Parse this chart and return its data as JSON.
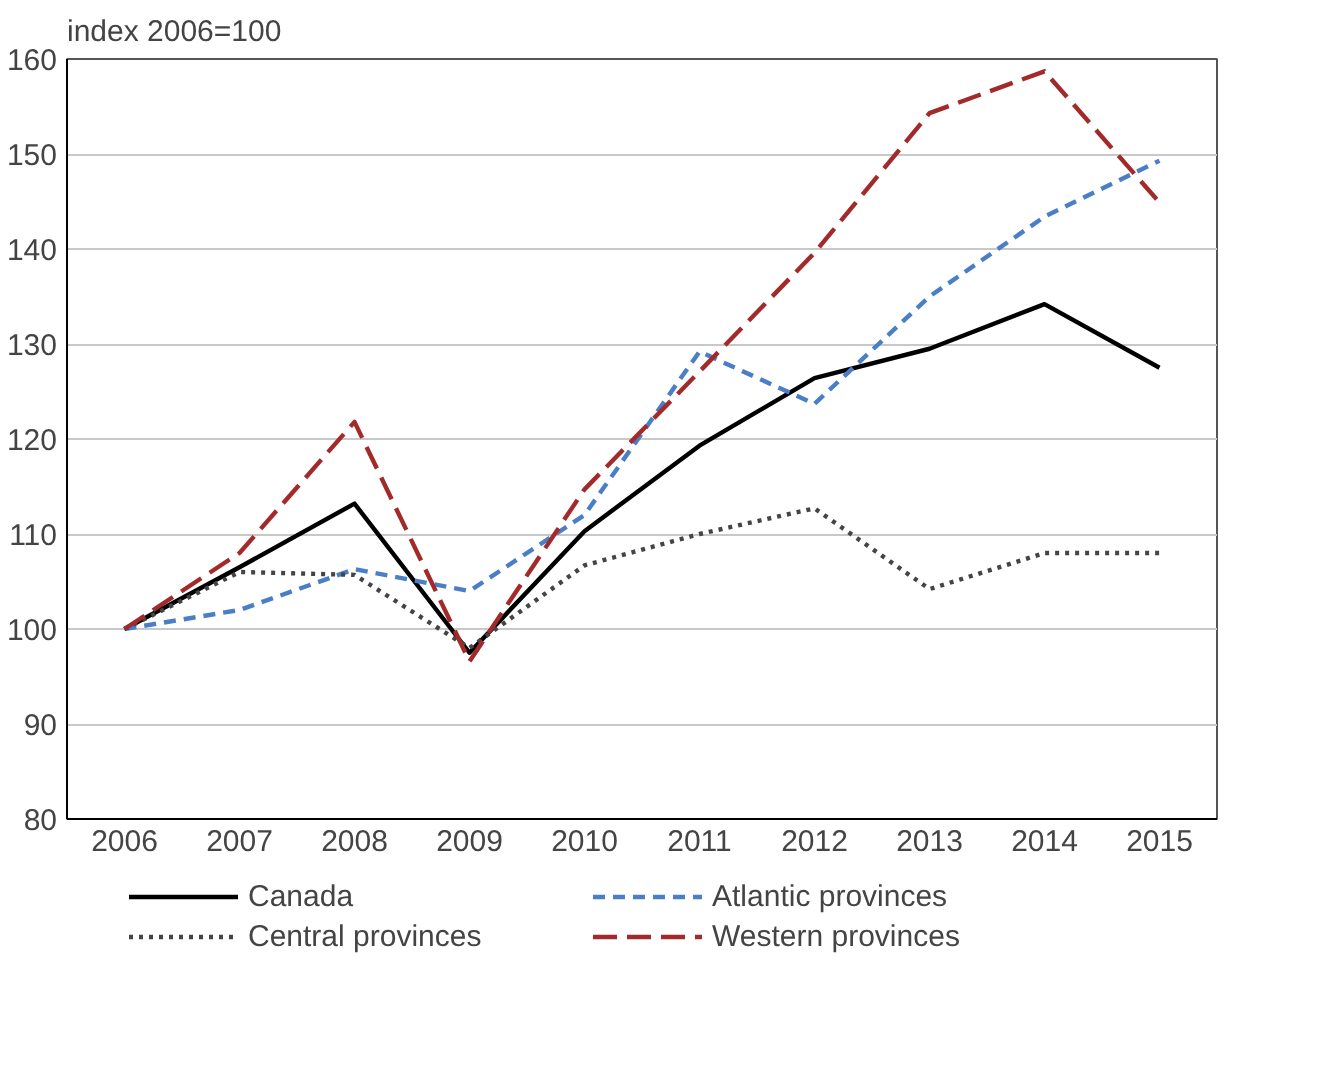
{
  "chart_data": {
    "type": "line",
    "ylabel": "index 2006=100",
    "categories": [
      "2006",
      "2007",
      "2008",
      "2009",
      "2010",
      "2011",
      "2012",
      "2013",
      "2014",
      "2015"
    ],
    "series": [
      {
        "name": "Canada",
        "color": "#000000",
        "line_style": "solid",
        "values": [
          100,
          106.5,
          113.2,
          97.5,
          110.3,
          119.3,
          126.4,
          129.5,
          134.2,
          127.5
        ]
      },
      {
        "name": "Atlantic provinces",
        "color": "#4a7fc7",
        "line_style": "dashed",
        "values": [
          100,
          102,
          106.3,
          104,
          112,
          129.2,
          123.7,
          135,
          143.4,
          149.3
        ]
      },
      {
        "name": "Central provinces",
        "color": "#444444",
        "line_style": "dotted",
        "values": [
          100,
          106,
          105.7,
          98,
          106.7,
          110,
          112.7,
          104.2,
          108,
          108
        ]
      },
      {
        "name": "Western provinces",
        "color": "#a32a2a",
        "line_style": "dashed",
        "values": [
          100,
          108,
          121.8,
          96.6,
          114.7,
          127.1,
          139.6,
          154.3,
          158.7,
          144.9
        ]
      }
    ],
    "ylim": [
      80,
      160
    ],
    "yticks": [
      80,
      90,
      100,
      110,
      120,
      130,
      140,
      150,
      160
    ],
    "grid": "y",
    "legend": "bottom",
    "marker": "none"
  }
}
